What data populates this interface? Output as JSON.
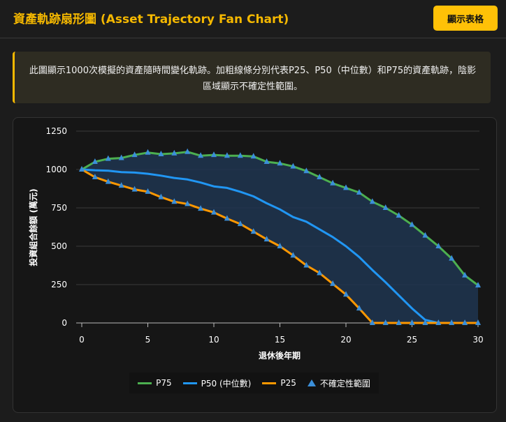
{
  "header": {
    "title": "資產軌跡扇形圖 (Asset Trajectory Fan Chart)",
    "button_label": "顯示表格"
  },
  "note": {
    "text": "此圖顯示1000次模擬的資產隨時間變化軌跡。加粗線條分別代表P25、P50（中位數）和P75的資產軌跡，陰影區域顯示不確定性範圍。"
  },
  "colors": {
    "p75": "#4caf50",
    "p50": "#2196f3",
    "p25": "#ff9800",
    "band": "#1e3550",
    "marker": "#3b8fd9"
  },
  "chart_data": {
    "type": "line",
    "xlabel": "退休後年期",
    "ylabel": "投資組合餘額 (萬元)",
    "xlim": [
      0,
      30
    ],
    "ylim": [
      0,
      1250
    ],
    "x_ticks": [
      0,
      5,
      10,
      15,
      20,
      25,
      30
    ],
    "y_ticks": [
      0,
      250,
      500,
      750,
      1000,
      1250
    ],
    "grid": "horizontal",
    "legend_position": "bottom",
    "x": [
      0,
      1,
      2,
      3,
      4,
      5,
      6,
      7,
      8,
      9,
      10,
      11,
      12,
      13,
      14,
      15,
      16,
      17,
      18,
      19,
      20,
      21,
      22,
      23,
      24,
      25,
      26,
      27,
      28,
      29,
      30
    ],
    "series": [
      {
        "name": "P75",
        "values": [
          1000,
          1050,
          1070,
          1075,
          1095,
          1110,
          1100,
          1105,
          1115,
          1090,
          1095,
          1090,
          1090,
          1085,
          1050,
          1040,
          1020,
          990,
          950,
          910,
          880,
          850,
          790,
          750,
          700,
          640,
          570,
          500,
          420,
          310,
          245
        ]
      },
      {
        "name": "P50 (中位數)",
        "values": [
          1000,
          995,
          992,
          983,
          980,
          972,
          960,
          945,
          935,
          915,
          890,
          880,
          855,
          825,
          780,
          740,
          690,
          660,
          610,
          560,
          500,
          430,
          345,
          265,
          180,
          95,
          20,
          0,
          0,
          0,
          0
        ]
      },
      {
        "name": "P25",
        "values": [
          1000,
          950,
          920,
          895,
          870,
          855,
          820,
          790,
          775,
          745,
          720,
          680,
          645,
          595,
          545,
          500,
          440,
          375,
          325,
          255,
          185,
          95,
          0,
          0,
          0,
          0,
          0,
          0,
          0,
          0,
          0
        ]
      }
    ],
    "band_legend": "不確定性範圍"
  }
}
